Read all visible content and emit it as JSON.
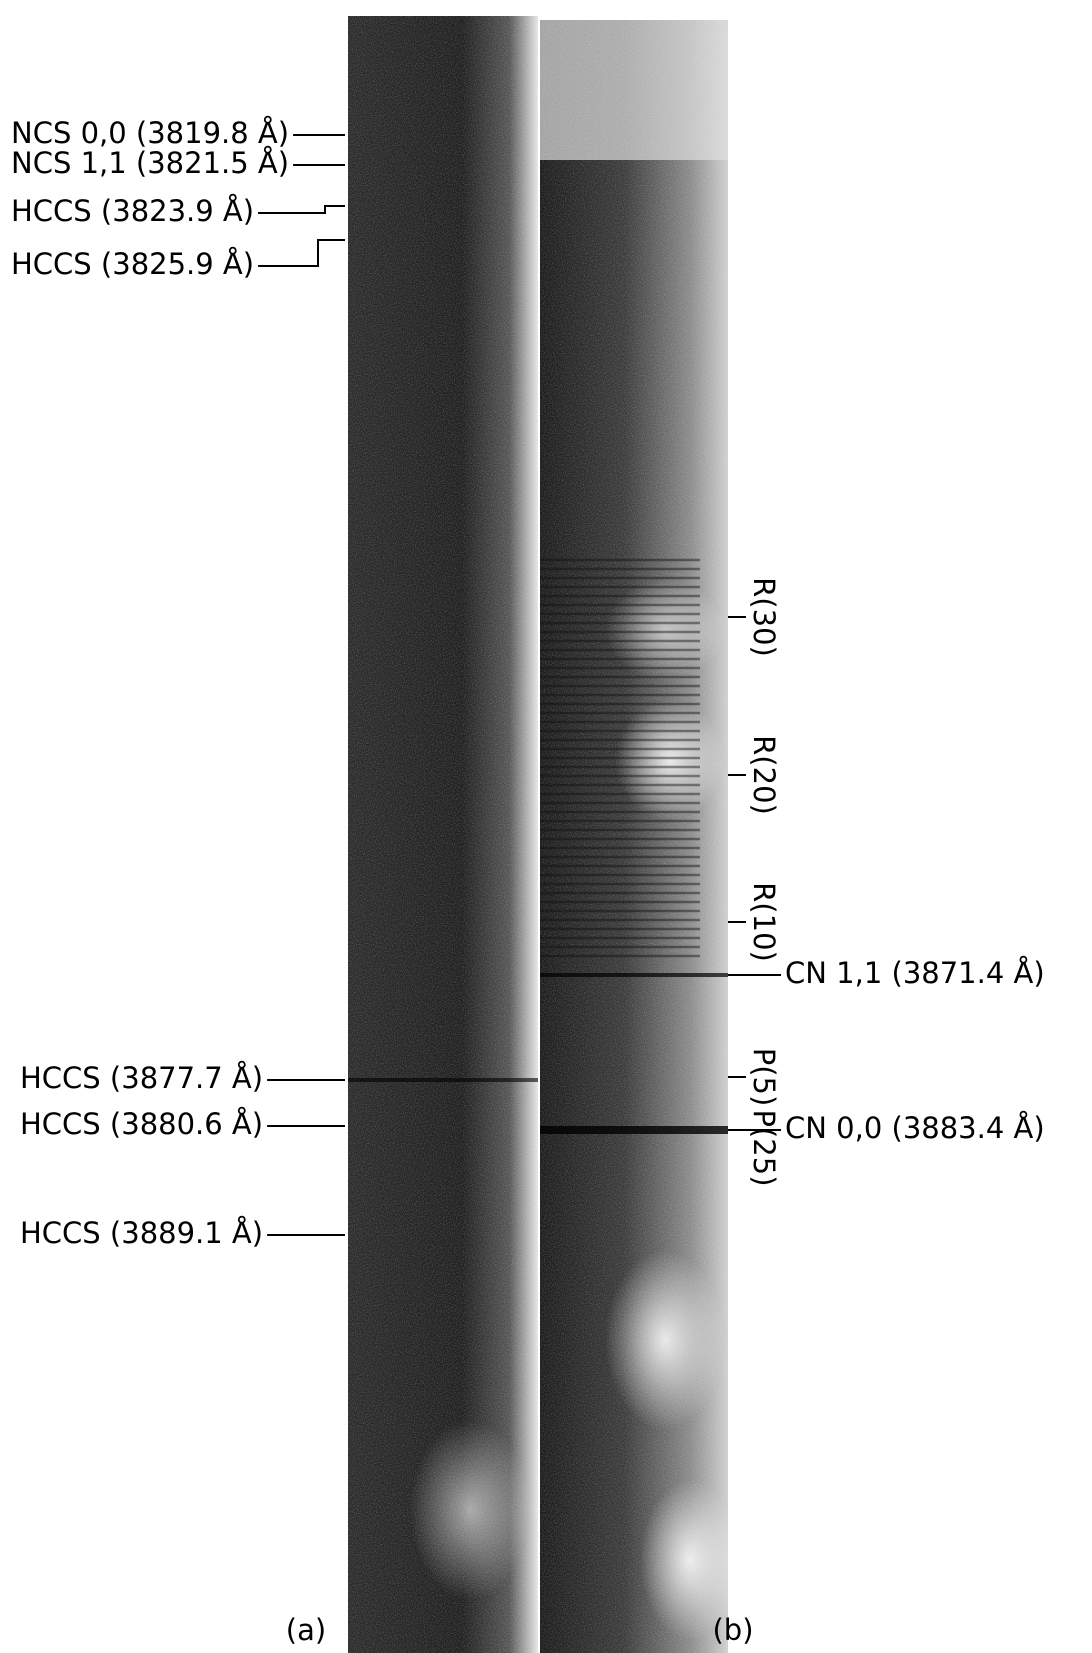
{
  "labels_left": [
    "NCS 0,0 (3819.8 Å)",
    "NCS 1,1 (3821.5 Å)",
    "HCCS (3823.9 Å)",
    "HCCS (3825.9 Å)",
    "HCCS (3877.7 Å)",
    "HCCS (3880.6 Å)",
    "HCCS (3889.1 Å)"
  ],
  "labels_right": [
    "CN 1,1 (3871.4 Å)",
    "CN 0,0 (3883.4 Å)"
  ],
  "line_labels": [
    "R(30)",
    "R(20)",
    "R(10)",
    "P(5)",
    "P(25)"
  ],
  "panels": [
    "(a)",
    "(b)"
  ]
}
